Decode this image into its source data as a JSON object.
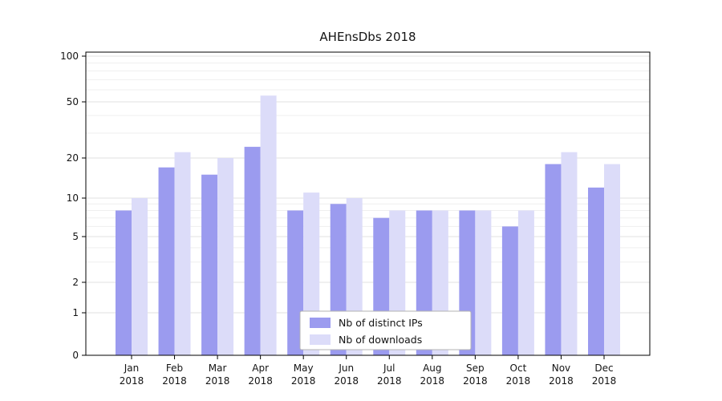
{
  "chart_data": {
    "type": "bar",
    "title": "AHEnsDbs 2018",
    "xlabel": "",
    "ylabel": "",
    "y_scale": "symlog",
    "ylim": [
      0,
      100
    ],
    "grid": true,
    "legend_position": "lower center",
    "categories": [
      "Jan",
      "Feb",
      "Mar",
      "Apr",
      "May",
      "Jun",
      "Jul",
      "Aug",
      "Sep",
      "Oct",
      "Nov",
      "Dec"
    ],
    "category_year": "2018",
    "y_ticks": [
      0,
      1,
      2,
      5,
      10,
      20,
      50,
      100
    ],
    "series": [
      {
        "name": "Nb of distinct IPs",
        "color": "#9b9bef",
        "values": [
          8,
          17,
          15,
          24,
          8,
          9,
          7,
          8,
          8,
          6,
          18,
          12
        ]
      },
      {
        "name": "Nb of downloads",
        "color": "#dcdcf9",
        "values": [
          10,
          22,
          20,
          55,
          11,
          10,
          8,
          8,
          8,
          8,
          22,
          18
        ]
      }
    ],
    "colors": {
      "axis": "#000000",
      "major_grid": "#e2e2e2",
      "minor_grid": "#efefef",
      "legend_border": "#b3b3b3",
      "text": "#141414"
    }
  }
}
